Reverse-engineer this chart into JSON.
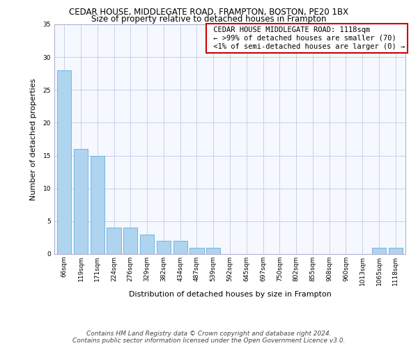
{
  "title": "CEDAR HOUSE, MIDDLEGATE ROAD, FRAMPTON, BOSTON, PE20 1BX",
  "subtitle": "Size of property relative to detached houses in Frampton",
  "xlabel": "Distribution of detached houses by size in Frampton",
  "ylabel": "Number of detached properties",
  "categories": [
    "66sqm",
    "119sqm",
    "171sqm",
    "224sqm",
    "276sqm",
    "329sqm",
    "382sqm",
    "434sqm",
    "487sqm",
    "539sqm",
    "592sqm",
    "645sqm",
    "697sqm",
    "750sqm",
    "802sqm",
    "855sqm",
    "908sqm",
    "960sqm",
    "1013sqm",
    "1065sqm",
    "1118sqm"
  ],
  "values": [
    28,
    16,
    15,
    4,
    4,
    3,
    2,
    2,
    1,
    1,
    0,
    0,
    0,
    0,
    0,
    0,
    0,
    0,
    0,
    1,
    1
  ],
  "bar_color": "#aed4ef",
  "bar_edge_color": "#6aadd5",
  "ylim": [
    0,
    35
  ],
  "yticks": [
    0,
    5,
    10,
    15,
    20,
    25,
    30,
    35
  ],
  "annotation_lines": [
    " CEDAR HOUSE MIDDLEGATE ROAD: 1118sqm",
    " ← >99% of detached houses are smaller (70)",
    " <1% of semi-detached houses are larger (0) →"
  ],
  "annotation_box_facecolor": "#ffffff",
  "annotation_box_edgecolor": "#cc0000",
  "footer_line1": "Contains HM Land Registry data © Crown copyright and database right 2024.",
  "footer_line2": "Contains public sector information licensed under the Open Government Licence v3.0.",
  "bg_color": "#ffffff",
  "plot_bg_color": "#f5f8ff",
  "grid_color": "#c8d0e8",
  "title_fontsize": 8.5,
  "subtitle_fontsize": 8.5,
  "tick_fontsize": 6.5,
  "ylabel_fontsize": 8,
  "xlabel_fontsize": 8,
  "annotation_fontsize": 7.5,
  "footer_fontsize": 6.5
}
